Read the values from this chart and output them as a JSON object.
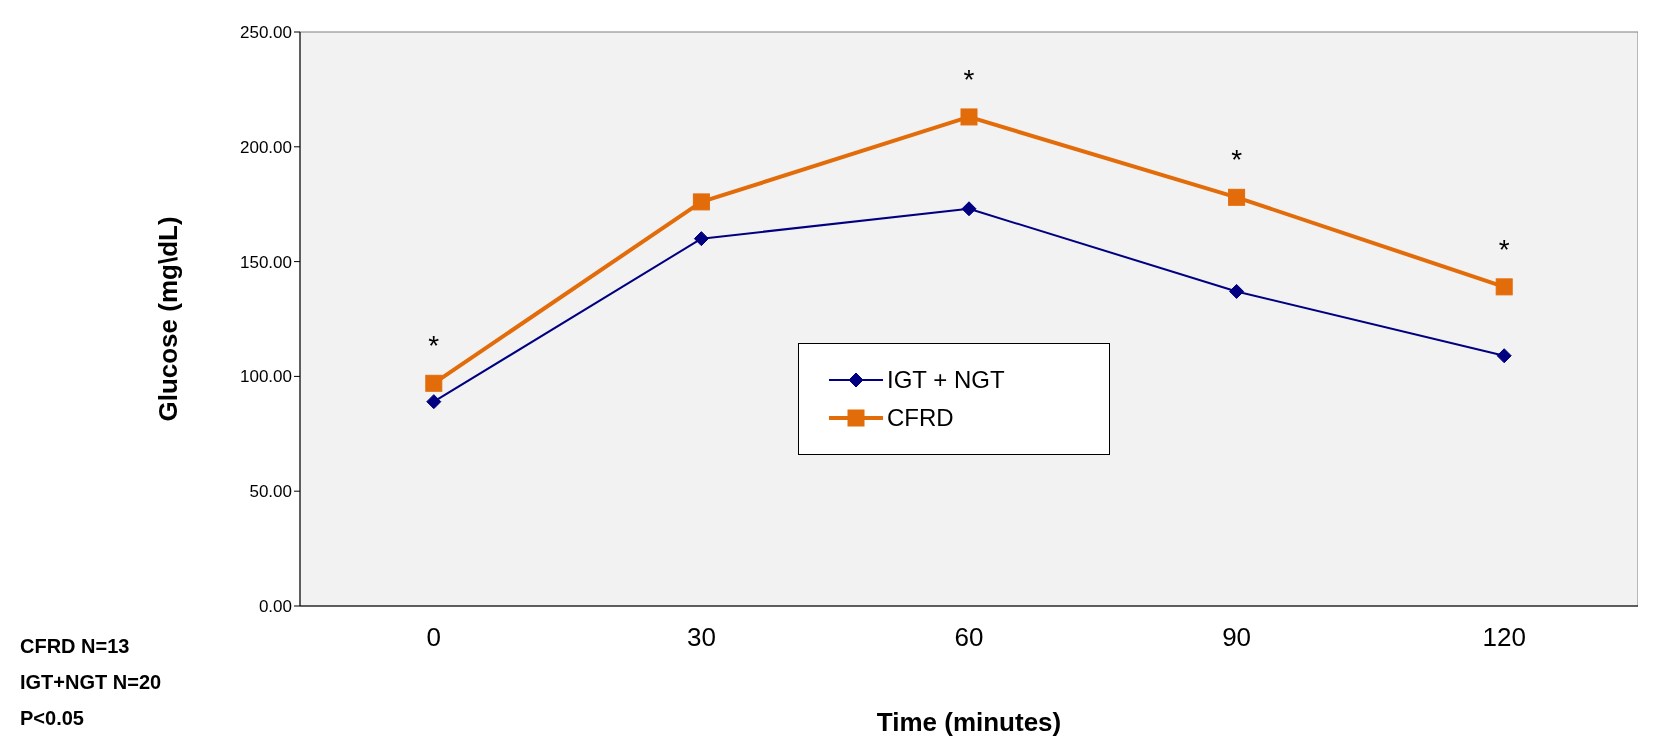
{
  "chart_data": {
    "type": "line",
    "xlabel": "Time (minutes)",
    "ylabel": "Glucose  (mg\\dL)",
    "categories": [
      "0",
      "30",
      "60",
      "90",
      "120"
    ],
    "series": [
      {
        "name": "IGT + NGT",
        "color": "#000080",
        "marker": "diamond",
        "values": [
          89,
          160,
          173,
          137,
          109
        ]
      },
      {
        "name": "CFRD",
        "color": "#e36c0a",
        "marker": "square",
        "values": [
          97,
          176,
          213,
          178,
          139
        ]
      }
    ],
    "ylim": [
      0,
      250
    ],
    "yticks": [
      {
        "value": 0,
        "label": "0.00"
      },
      {
        "value": 50,
        "label": "50.00"
      },
      {
        "value": 100,
        "label": "100.00"
      },
      {
        "value": 150,
        "label": "150.00"
      },
      {
        "value": 200,
        "label": "200.00"
      },
      {
        "value": 250,
        "label": "250.00"
      }
    ],
    "grid": false,
    "legend": "center",
    "annotations": [
      {
        "text": "*",
        "x": "0",
        "y": 97
      },
      {
        "text": "*",
        "x": "60",
        "y": 213
      },
      {
        "text": "*",
        "x": "90",
        "y": 178
      },
      {
        "text": "*",
        "x": "120",
        "y": 139
      },
      "CFRD N=13",
      "IGT+NGT N=20",
      "P<0.05"
    ]
  }
}
